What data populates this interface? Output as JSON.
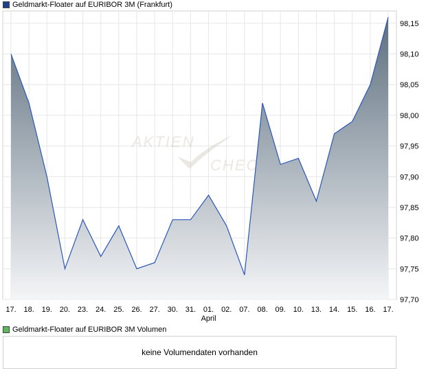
{
  "legend": {
    "price_label": "Geldmarkt-Floater auf EURIBOR 3M (Frankfurt)",
    "price_color": "#1f3f8f",
    "volume_label": "Geldmarkt-Floater auf EURIBOR 3M Volumen",
    "volume_color": "#5cb85c"
  },
  "watermark": {
    "line1": "AKTIEN",
    "line2": "CHECK"
  },
  "volume": {
    "message": "keine Volumendaten vorhanden"
  },
  "chart_data": {
    "type": "area",
    "x": [
      "17.",
      "18.",
      "19.",
      "20.",
      "23.",
      "24.",
      "25.",
      "26.",
      "27.",
      "30.",
      "31.",
      "01.",
      "02.",
      "07.",
      "08.",
      "09.",
      "10.",
      "13.",
      "14.",
      "15.",
      "16.",
      "17."
    ],
    "month_label": {
      "index": 11,
      "text": "April"
    },
    "series": [
      {
        "values": [
          98.1,
          98.02,
          97.9,
          97.75,
          97.83,
          97.77,
          97.82,
          97.75,
          97.76,
          97.83,
          97.83,
          97.87,
          97.82,
          97.74,
          98.02,
          97.92,
          97.93,
          97.86,
          97.97,
          97.99,
          98.05,
          98.16
        ]
      }
    ],
    "yticks": [
      "98,15",
      "98,10",
      "98,05",
      "98,00",
      "97,95",
      "97,90",
      "97,85",
      "97,80",
      "97,75",
      "97,70"
    ],
    "ylim": [
      97.7,
      98.17
    ],
    "grid": true,
    "line_color": "#2a56b8",
    "fill_top": "#5d6f7e",
    "fill_bottom": "#f4f5f7"
  }
}
